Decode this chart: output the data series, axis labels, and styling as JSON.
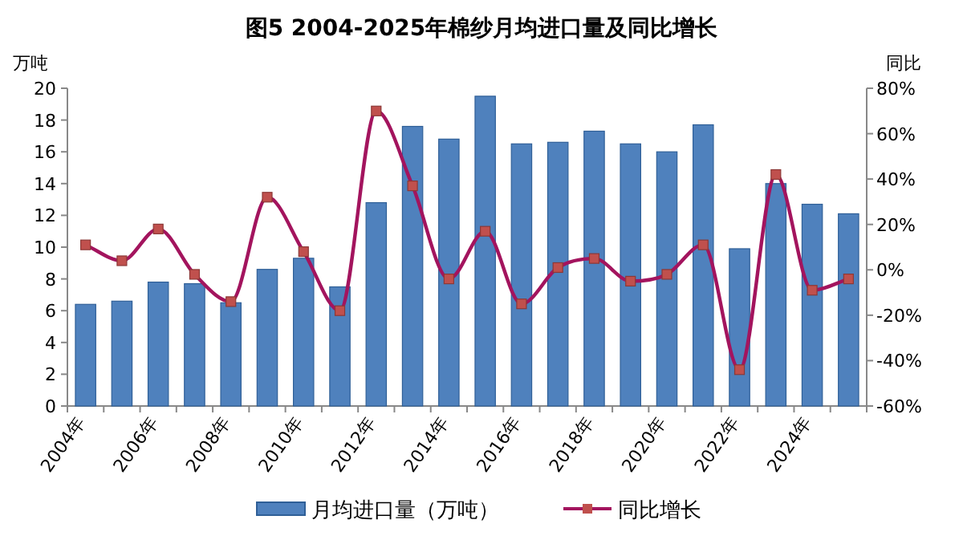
{
  "chart_data": {
    "type": "bar",
    "title": "图5 2004-2025年棉纱月均进口量及同比增长",
    "categories": [
      "2004年",
      null,
      "2006年",
      null,
      "2008年",
      null,
      "2010年",
      null,
      "2012年",
      null,
      "2014年",
      null,
      "2016年",
      null,
      "2018年",
      null,
      "2020年",
      null,
      "2022年",
      null,
      "2024年",
      null
    ],
    "series": [
      {
        "name": "月均进口量（万吨）",
        "color": "#4f81bd",
        "values": [
          6.4,
          6.6,
          7.8,
          7.7,
          6.5,
          8.6,
          9.3,
          7.5,
          12.8,
          17.6,
          16.8,
          19.5,
          16.5,
          16.6,
          17.3,
          16.5,
          16.0,
          17.7,
          9.9,
          14.0,
          12.7,
          12.1
        ]
      },
      {
        "name": "同比增长",
        "type": "line",
        "axis": "y2",
        "color": "#a3145e",
        "marker": "square",
        "values": [
          11,
          4,
          18,
          -2,
          -14,
          32,
          8,
          -18,
          70,
          37,
          -4,
          17,
          -15,
          1,
          5,
          -5,
          -2,
          11,
          -44,
          42,
          -9,
          -4
        ]
      }
    ],
    "ylabel": "万吨",
    "y2label": "同比",
    "ylim": [
      0,
      20
    ],
    "yticks": [
      0,
      2,
      4,
      6,
      8,
      10,
      12,
      14,
      16,
      18,
      20
    ],
    "y2lim": [
      -60,
      80
    ],
    "y2ticks": [
      {
        "value": -60,
        "label": "-60%"
      },
      {
        "value": -40,
        "label": "-40%"
      },
      {
        "value": -20,
        "label": "-20%"
      },
      {
        "value": 0,
        "label": "0%"
      },
      {
        "value": 20,
        "label": "20%"
      },
      {
        "value": 40,
        "label": "40%"
      },
      {
        "value": 60,
        "label": "60%"
      },
      {
        "value": 80,
        "label": "80%"
      }
    ],
    "legend": "bottom",
    "grid": false
  }
}
